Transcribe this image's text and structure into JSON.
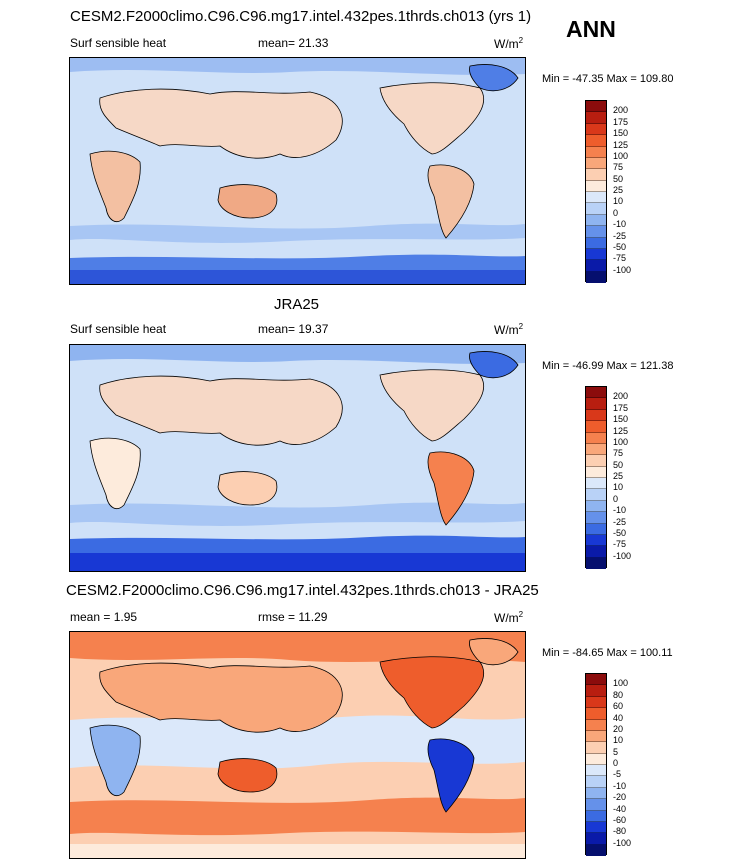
{
  "page": {
    "season": "ANN"
  },
  "panels": [
    {
      "title": "CESM2.F2000climo.C96.C96.mg17.intel.432pes.1thrds.ch013 (yrs 1)",
      "left_text": "Surf sensible heat",
      "stat_text": "mean=  21.33",
      "units": "W/m",
      "units_sup": "2",
      "minmax": "Min = -47.35 Max = 109.80",
      "levels": [
        "200",
        "175",
        "150",
        "125",
        "100",
        "75",
        "50",
        "25",
        "10",
        "0",
        "-10",
        "-25",
        "-50",
        "-75",
        "-100"
      ],
      "colors": [
        "#8b0c0c",
        "#b81e10",
        "#d9381a",
        "#ee5d2c",
        "#f5814e",
        "#f9a77a",
        "#fccfb2",
        "#fdebdc",
        "#dbe8fa",
        "#b9d2f7",
        "#8fb4f0",
        "#6591ea",
        "#3b6be2",
        "#1838d4",
        "#0a1aa8",
        "#050f6e"
      ]
    },
    {
      "title": "JRA25",
      "left_text": "Surf sensible heat",
      "stat_text": "mean=  19.37",
      "units": "W/m",
      "units_sup": "2",
      "minmax": "Min = -46.99 Max = 121.38",
      "levels": [
        "200",
        "175",
        "150",
        "125",
        "100",
        "75",
        "50",
        "25",
        "10",
        "0",
        "-10",
        "-25",
        "-50",
        "-75",
        "-100"
      ],
      "colors": [
        "#8b0c0c",
        "#b81e10",
        "#d9381a",
        "#ee5d2c",
        "#f5814e",
        "#f9a77a",
        "#fccfb2",
        "#fdebdc",
        "#dbe8fa",
        "#b9d2f7",
        "#8fb4f0",
        "#6591ea",
        "#3b6be2",
        "#1838d4",
        "#0a1aa8",
        "#050f6e"
      ]
    },
    {
      "title": "CESM2.F2000climo.C96.C96.mg17.intel.432pes.1thrds.ch013 - JRA25",
      "left_text": "mean =   1.95",
      "stat_text": "rmse =  11.29",
      "units": "W/m",
      "units_sup": "2",
      "minmax": "Min = -84.65 Max = 100.11",
      "levels": [
        "100",
        "80",
        "60",
        "40",
        "20",
        "10",
        "5",
        "0",
        "-5",
        "-10",
        "-20",
        "-40",
        "-60",
        "-80",
        "-100"
      ],
      "colors": [
        "#8b0c0c",
        "#b81e10",
        "#d9381a",
        "#ee5d2c",
        "#f5814e",
        "#f9a77a",
        "#fccfb2",
        "#fdebdc",
        "#dbe8fa",
        "#b9d2f7",
        "#8fb4f0",
        "#6591ea",
        "#3b6be2",
        "#1838d4",
        "#0a1aa8",
        "#050f6e"
      ]
    }
  ],
  "chart_data": [
    {
      "type": "heatmap",
      "title": "CESM2.F2000climo.C96.C96.mg17.intel.432pes.1thrds.ch013 (yrs 1)",
      "variable": "Surf sensible heat",
      "mean": 21.33,
      "units": "W/m2",
      "min": -47.35,
      "max": 109.8,
      "contour_levels": [
        -100,
        -75,
        -50,
        -25,
        -10,
        0,
        10,
        25,
        50,
        75,
        100,
        125,
        150,
        175,
        200
      ],
      "xlim": [
        0,
        360
      ],
      "ylim": [
        -90,
        90
      ]
    },
    {
      "type": "heatmap",
      "title": "JRA25",
      "variable": "Surf sensible heat",
      "mean": 19.37,
      "units": "W/m2",
      "min": -46.99,
      "max": 121.38,
      "contour_levels": [
        -100,
        -75,
        -50,
        -25,
        -10,
        0,
        10,
        25,
        50,
        75,
        100,
        125,
        150,
        175,
        200
      ],
      "xlim": [
        0,
        360
      ],
      "ylim": [
        -90,
        90
      ]
    },
    {
      "type": "heatmap",
      "title": "CESM2.F2000climo.C96.C96.mg17.intel.432pes.1thrds.ch013 - JRA25",
      "mean": 1.95,
      "rmse": 11.29,
      "units": "W/m2",
      "min": -84.65,
      "max": 100.11,
      "contour_levels": [
        -100,
        -80,
        -60,
        -40,
        -20,
        -10,
        -5,
        0,
        5,
        10,
        20,
        40,
        60,
        80,
        100
      ],
      "xlim": [
        0,
        360
      ],
      "ylim": [
        -90,
        90
      ]
    }
  ]
}
